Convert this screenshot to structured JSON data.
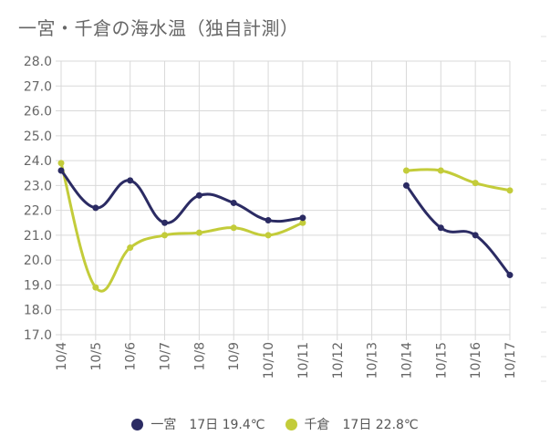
{
  "title": "一宮・千倉の海水温（独自計測）",
  "legend": [
    {
      "label": "一宮　17日 19.4℃",
      "color": "#2b2b63"
    },
    {
      "label": "千倉　17日 22.8℃",
      "color": "#c3cc3a"
    }
  ],
  "chart_data": {
    "type": "line",
    "title": "一宮・千倉の海水温（独自計測）",
    "categories": [
      "10/4",
      "10/5",
      "10/6",
      "10/7",
      "10/8",
      "10/9",
      "10/10",
      "10/11",
      "10/12",
      "10/13",
      "10/14",
      "10/15",
      "10/16",
      "10/17"
    ],
    "ylim": [
      17.0,
      28.0
    ],
    "yticks": [
      "17.0",
      "18.0",
      "19.0",
      "20.0",
      "21.0",
      "22.0",
      "23.0",
      "24.0",
      "25.0",
      "26.0",
      "27.0",
      "28.0"
    ],
    "grid": true,
    "legend_position": "bottom",
    "series": [
      {
        "name": "一宮　17日 19.4℃",
        "color": "#2b2b63",
        "values": [
          23.6,
          22.1,
          23.2,
          21.5,
          22.6,
          22.3,
          21.6,
          21.7,
          null,
          null,
          23.0,
          21.3,
          21.0,
          19.4
        ]
      },
      {
        "name": "千倉　17日 22.8℃",
        "color": "#c3cc3a",
        "values": [
          23.9,
          18.9,
          20.5,
          21.0,
          21.1,
          21.3,
          21.0,
          21.5,
          null,
          null,
          23.6,
          23.6,
          23.1,
          22.8
        ]
      }
    ]
  }
}
